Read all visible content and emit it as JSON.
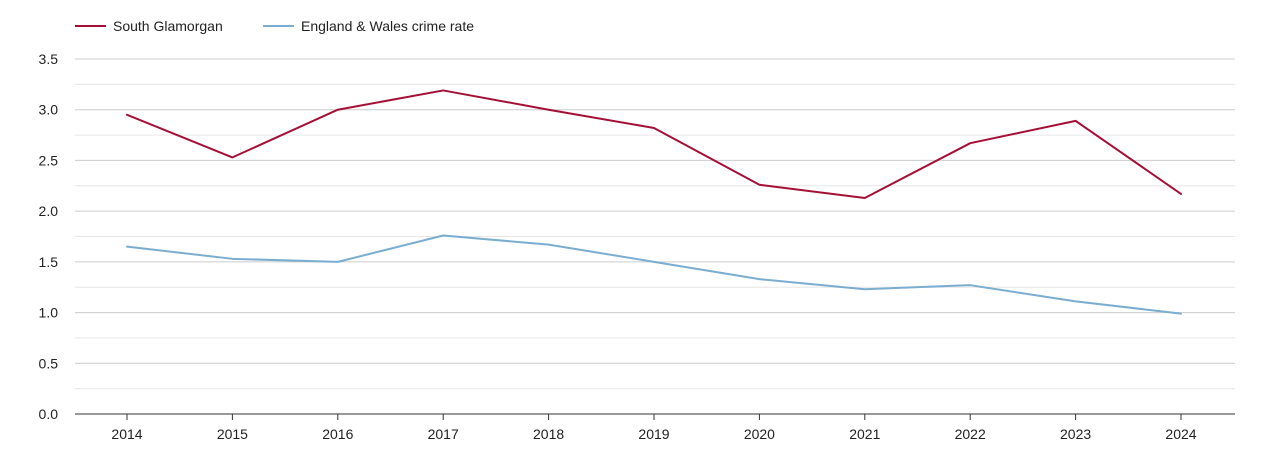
{
  "chart_data": {
    "type": "line",
    "title": "",
    "xlabel": "",
    "ylabel": "",
    "legend_position": "top-left",
    "grid": true,
    "categories": [
      "2014",
      "2015",
      "2016",
      "2017",
      "2018",
      "2019",
      "2020",
      "2021",
      "2022",
      "2023",
      "2024"
    ],
    "ylim": [
      0,
      3.5
    ],
    "yticks": [
      "0.0",
      "0.5",
      "1.0",
      "1.5",
      "2.0",
      "2.5",
      "3.0",
      "3.5"
    ],
    "series": [
      {
        "name": "South Glamorgan",
        "color": "#a50f36",
        "values": [
          2.95,
          2.53,
          3.0,
          3.19,
          3.0,
          2.82,
          2.26,
          2.13,
          2.67,
          2.89,
          2.17
        ]
      },
      {
        "name": "England & Wales crime rate",
        "color": "#7aadd0",
        "values": [
          1.65,
          1.53,
          1.5,
          1.76,
          1.67,
          1.5,
          1.33,
          1.23,
          1.27,
          1.11,
          0.99
        ]
      }
    ]
  }
}
